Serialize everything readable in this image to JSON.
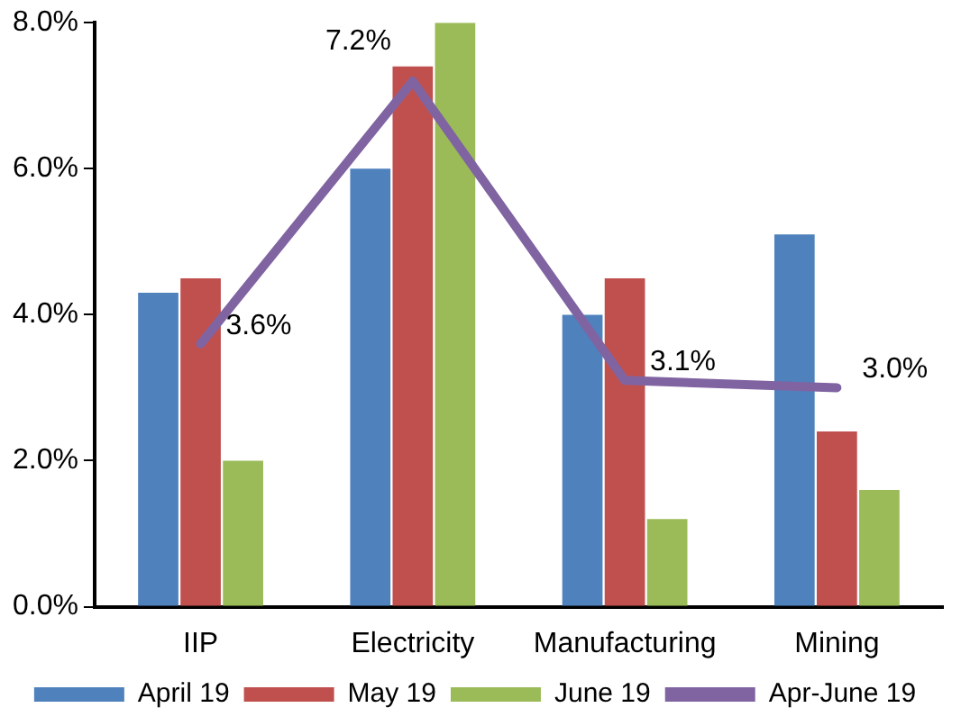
{
  "chart_data": {
    "type": "bar",
    "categories": [
      "IIP",
      "Electricity",
      "Manufacturing",
      "Mining"
    ],
    "series": [
      {
        "name": "April 19",
        "color": "#4f81bd",
        "values": [
          4.3,
          6.0,
          4.0,
          5.1
        ]
      },
      {
        "name": "May 19",
        "color": "#c0504d",
        "values": [
          4.5,
          7.4,
          4.5,
          2.4
        ]
      },
      {
        "name": "June 19",
        "color": "#9bbb59",
        "values": [
          2.0,
          8.0,
          1.2,
          1.6
        ]
      },
      {
        "name": "Apr-June 19",
        "type": "line",
        "color": "#8064a2",
        "values": [
          3.6,
          7.2,
          3.1,
          3.0
        ],
        "value_labels": [
          "3.6%",
          "7.2%",
          "3.1%",
          "3.0%"
        ]
      }
    ],
    "ylim": [
      0,
      8
    ],
    "yticks": [
      {
        "value": 0,
        "label": "0.0%"
      },
      {
        "value": 2,
        "label": "2.0%"
      },
      {
        "value": 4,
        "label": "4.0%"
      },
      {
        "value": 6,
        "label": "6.0%"
      },
      {
        "value": 8,
        "label": "8.0%"
      }
    ],
    "grid": false,
    "legend": "bottom",
    "marker": "none"
  }
}
